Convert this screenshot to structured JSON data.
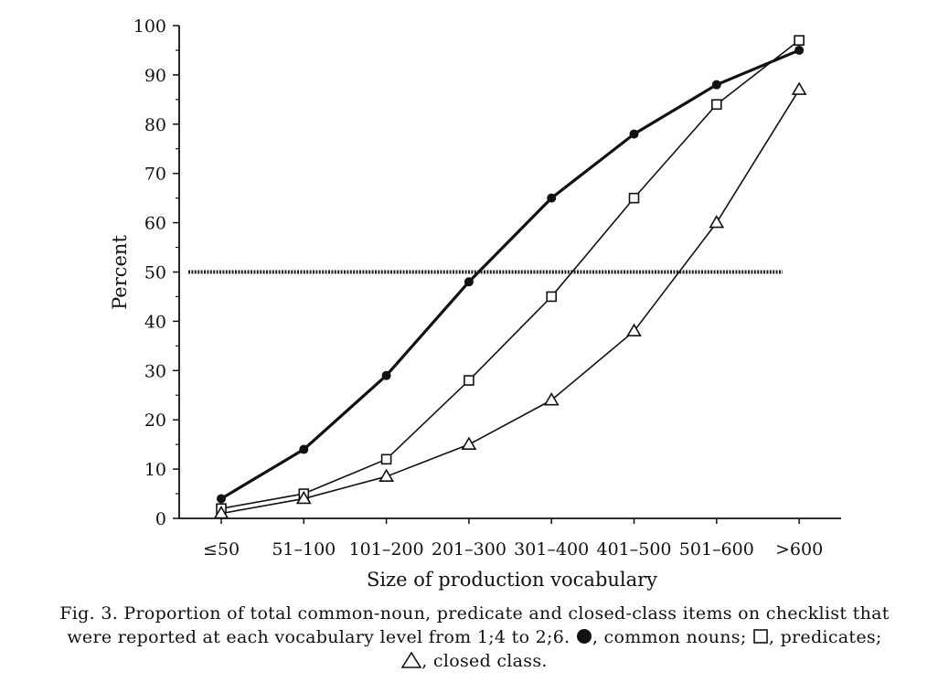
{
  "chart_data": {
    "type": "line",
    "xlabel": "Size of production vocabulary",
    "ylabel": "Percent",
    "ylim": [
      0,
      100
    ],
    "yticks": [
      0,
      10,
      20,
      30,
      40,
      50,
      60,
      70,
      80,
      90,
      100
    ],
    "categories": [
      "≤50",
      "51–100",
      "101–200",
      "201–300",
      "301–400",
      "401–500",
      "501–600",
      ">600"
    ],
    "reference_line": {
      "y": 50,
      "style": "dotted"
    },
    "grid": false,
    "series": [
      {
        "name": "common nouns",
        "marker": "filled-circle",
        "values": [
          4,
          14,
          29,
          48,
          65,
          78,
          88,
          95
        ]
      },
      {
        "name": "predicates",
        "marker": "open-square",
        "values": [
          2,
          5,
          12,
          28,
          45,
          65,
          84,
          97
        ]
      },
      {
        "name": "closed class",
        "marker": "open-triangle",
        "values": [
          1,
          4,
          8.5,
          15,
          24,
          38,
          60,
          87
        ]
      }
    ]
  },
  "caption": {
    "line1": "Fig. 3. Proportion of total common-noun, predicate and closed-class items on checklist that",
    "line2_prefix": "were reported at each vocabulary level from 1;4 to 2;6.",
    "line2_nouns": ", common nouns;",
    "line2_predicates": ", predicates;",
    "line3_closed": ", closed class."
  }
}
